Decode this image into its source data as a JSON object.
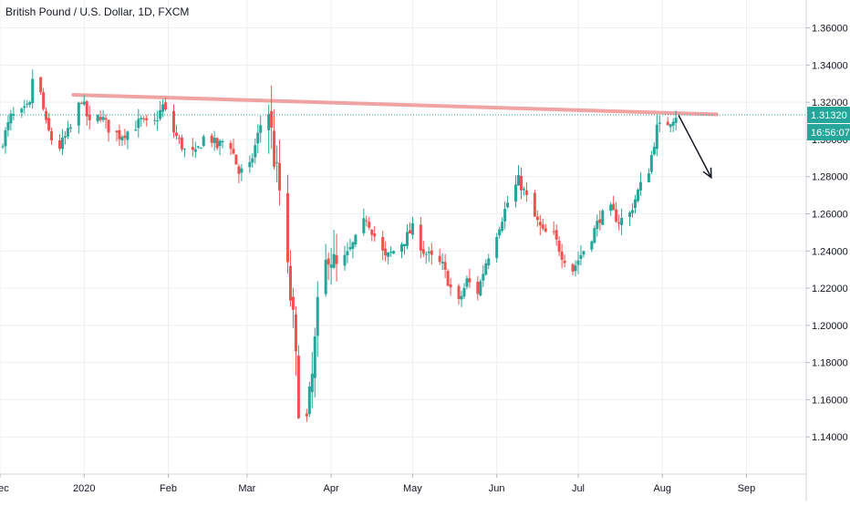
{
  "chart_title": "British Pound / U.S. Dollar, 1D, FXCM",
  "colors": {
    "up": "#26a69a",
    "down": "#ef5350",
    "resistance": "#ef9a9a",
    "price_line": "#26a69a",
    "arrow": "#131722",
    "grid": "#eceff2",
    "axis_text": "#131722"
  },
  "chart_data": {
    "type": "candlestick",
    "title": "British Pound / U.S. Dollar, 1D, FXCM",
    "ylim": [
      1.12,
      1.375
    ],
    "y_ticks": [
      1.36,
      1.34,
      1.32,
      1.3,
      1.28,
      1.26,
      1.24,
      1.22,
      1.2,
      1.18,
      1.16,
      1.14
    ],
    "y_tick_labels": [
      "1.36000",
      "1.34000",
      "1.32000",
      "1.30000",
      "1.28000",
      "1.26000",
      "1.24000",
      "1.22000",
      "1.20000",
      "1.18000",
      "1.16000",
      "1.14000"
    ],
    "x_ticks": [
      {
        "label": "Dec",
        "date": "2019-12-01"
      },
      {
        "label": "2020",
        "date": "2020-01-01"
      },
      {
        "label": "Feb",
        "date": "2020-02-01"
      },
      {
        "label": "Mar",
        "date": "2020-03-01"
      },
      {
        "label": "Apr",
        "date": "2020-04-01"
      },
      {
        "label": "May",
        "date": "2020-05-01"
      },
      {
        "label": "Jun",
        "date": "2020-06-01"
      },
      {
        "label": "Jul",
        "date": "2020-07-01"
      },
      {
        "label": "Aug",
        "date": "2020-08-01"
      },
      {
        "label": "Sep",
        "date": "2020-09-01"
      }
    ],
    "xlim": [
      "2019-12-01",
      "2020-09-23"
    ],
    "close_path": [
      [
        "2019-12-01",
        1.295
      ],
      [
        "2019-12-05",
        1.312
      ],
      [
        "2019-12-09",
        1.314
      ],
      [
        "2019-12-12",
        1.318
      ],
      [
        "2019-12-13",
        1.333
      ],
      [
        "2019-12-16",
        1.324
      ],
      [
        "2019-12-18",
        1.308
      ],
      [
        "2019-12-20",
        1.3
      ],
      [
        "2019-12-23",
        1.296
      ],
      [
        "2019-12-27",
        1.306
      ],
      [
        "2019-12-31",
        1.322
      ],
      [
        "2020-01-03",
        1.308
      ],
      [
        "2020-01-07",
        1.313
      ],
      [
        "2020-01-10",
        1.306
      ],
      [
        "2020-01-14",
        1.302
      ],
      [
        "2020-01-18",
        1.305
      ],
      [
        "2020-01-22",
        1.31
      ],
      [
        "2020-01-26",
        1.306
      ],
      [
        "2020-01-30",
        1.318
      ],
      [
        "2020-02-03",
        1.304
      ],
      [
        "2020-02-07",
        1.294
      ],
      [
        "2020-02-11",
        1.292
      ],
      [
        "2020-02-15",
        1.304
      ],
      [
        "2020-02-19",
        1.296
      ],
      [
        "2020-02-23",
        1.302
      ],
      [
        "2020-02-27",
        1.282
      ],
      [
        "2020-03-02",
        1.285
      ],
      [
        "2020-03-06",
        1.308
      ],
      [
        "2020-03-09",
        1.316
      ],
      [
        "2020-03-11",
        1.29
      ],
      [
        "2020-03-13",
        1.272
      ],
      [
        "2020-03-16",
        1.228
      ],
      [
        "2020-03-18",
        1.202
      ],
      [
        "2020-03-20",
        1.158
      ],
      [
        "2020-03-23",
        1.148
      ],
      [
        "2020-03-25",
        1.172
      ],
      [
        "2020-03-27",
        1.208
      ],
      [
        "2020-03-31",
        1.24
      ],
      [
        "2020-04-03",
        1.23
      ],
      [
        "2020-04-07",
        1.238
      ],
      [
        "2020-04-10",
        1.246
      ],
      [
        "2020-04-14",
        1.258
      ],
      [
        "2020-04-17",
        1.248
      ],
      [
        "2020-04-21",
        1.236
      ],
      [
        "2020-04-24",
        1.24
      ],
      [
        "2020-04-28",
        1.246
      ],
      [
        "2020-05-01",
        1.252
      ],
      [
        "2020-05-05",
        1.24
      ],
      [
        "2020-05-08",
        1.236
      ],
      [
        "2020-05-12",
        1.232
      ],
      [
        "2020-05-15",
        1.22
      ],
      [
        "2020-05-18",
        1.212
      ],
      [
        "2020-05-21",
        1.224
      ],
      [
        "2020-05-25",
        1.218
      ],
      [
        "2020-05-28",
        1.234
      ],
      [
        "2020-06-01",
        1.25
      ],
      [
        "2020-06-05",
        1.266
      ],
      [
        "2020-06-09",
        1.278
      ],
      [
        "2020-06-11",
        1.272
      ],
      [
        "2020-06-15",
        1.258
      ],
      [
        "2020-06-18",
        1.25
      ],
      [
        "2020-06-22",
        1.248
      ],
      [
        "2020-06-25",
        1.238
      ],
      [
        "2020-06-29",
        1.23
      ],
      [
        "2020-07-02",
        1.238
      ],
      [
        "2020-07-06",
        1.248
      ],
      [
        "2020-07-09",
        1.258
      ],
      [
        "2020-07-13",
        1.262
      ],
      [
        "2020-07-16",
        1.256
      ],
      [
        "2020-07-20",
        1.26
      ],
      [
        "2020-07-23",
        1.272
      ],
      [
        "2020-07-27",
        1.284
      ],
      [
        "2020-07-30",
        1.306
      ],
      [
        "2020-08-03",
        1.309
      ],
      [
        "2020-08-06",
        1.3132
      ]
    ],
    "last_price_label": "1.31320",
    "countdown_label": "16:56:07",
    "last_price": 1.3132,
    "resistance_line": {
      "start": [
        "2019-12-28",
        1.324
      ],
      "end": [
        "2020-08-21",
        1.3135
      ]
    },
    "projection_arrow": {
      "start": [
        "2020-08-07",
        1.313
      ],
      "end": [
        "2020-08-19",
        1.2795
      ]
    }
  }
}
